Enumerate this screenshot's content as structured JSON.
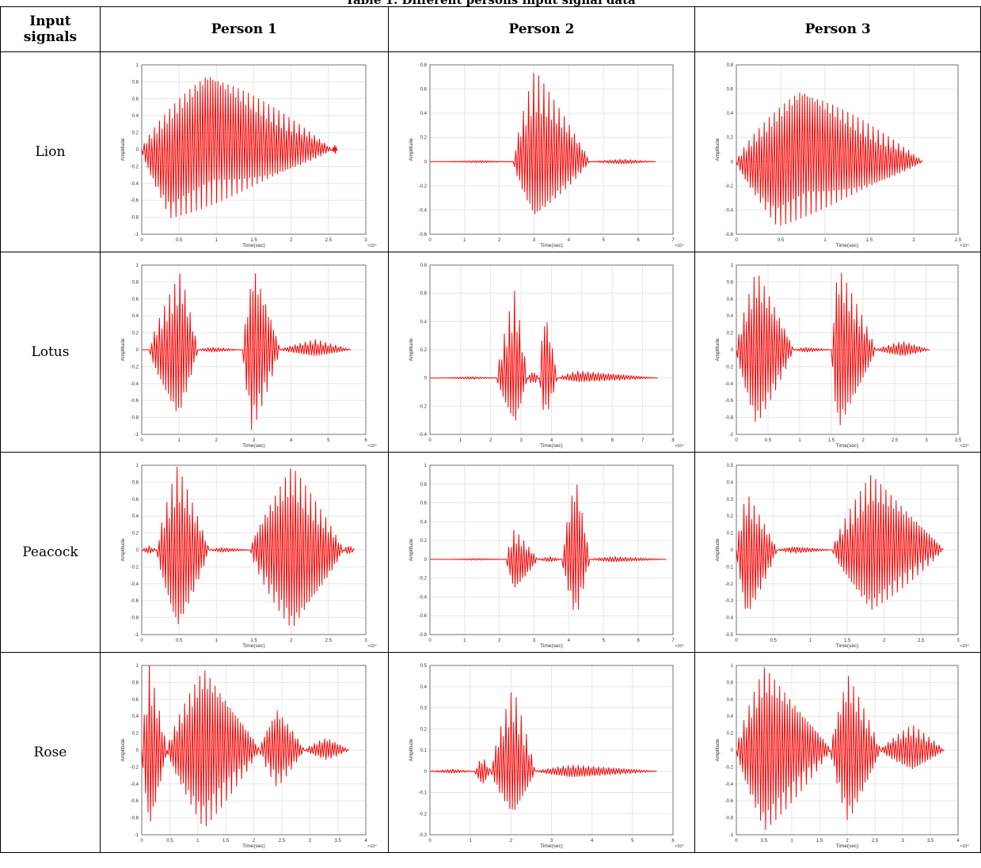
{
  "caption": "Table 1. Different persons input signal data",
  "header": {
    "input_signals_line1": "Input",
    "input_signals_line2": "signals",
    "persons": [
      "Person 1",
      "Person 2",
      "Person 3"
    ]
  },
  "colors": {
    "signal": "#ff0000",
    "grid": "#e6e6e6",
    "axis": "#555555"
  },
  "rows": [
    {
      "label": "Lion"
    },
    {
      "label": "Lotus"
    },
    {
      "label": "Peacock"
    },
    {
      "label": "Rose"
    }
  ],
  "chart_data": [
    {
      "type": "line",
      "row": "Lion",
      "person": "Person 1",
      "xlabel": "Time(sec)",
      "ylabel": "Amplitude",
      "x_exponent": "×10⁴",
      "xlim": [
        0,
        3
      ],
      "xticks": [
        0,
        0.5,
        1,
        1.5,
        2,
        2.5,
        3
      ],
      "ylim": [
        -1,
        1
      ],
      "yticks": [
        -1,
        -0.8,
        -0.6,
        -0.4,
        -0.2,
        0,
        0.2,
        0.4,
        0.6,
        0.8,
        1
      ],
      "segments": [
        [
          0,
          2.55,
          0.98,
          0.35,
          -0.85,
          0.15
        ],
        [
          2.55,
          2.62,
          0.06,
          0.5,
          -0.06,
          0.5
        ]
      ]
    },
    {
      "type": "line",
      "row": "Lion",
      "person": "Person 2",
      "xlabel": "Time(sec)",
      "ylabel": "Amplitude",
      "x_exponent": "×10⁴",
      "xlim": [
        0,
        7
      ],
      "xticks": [
        0,
        1,
        2,
        3,
        4,
        5,
        6,
        7
      ],
      "ylim": [
        -0.6,
        0.8
      ],
      "yticks": [
        -0.6,
        -0.4,
        -0.2,
        0,
        0.2,
        0.4,
        0.6,
        0.8
      ],
      "segments": [
        [
          0.5,
          2.4,
          0.01,
          0.5,
          -0.01,
          0.5
        ],
        [
          2.4,
          4.6,
          0.76,
          0.28,
          -0.5,
          0.28
        ],
        [
          4.6,
          6.5,
          0.02,
          0.5,
          -0.02,
          0.5
        ]
      ]
    },
    {
      "type": "line",
      "row": "Lion",
      "person": "Person 3",
      "xlabel": "Time(sec)",
      "ylabel": "Amplitude",
      "x_exponent": "×10⁴",
      "xlim": [
        0,
        2.5
      ],
      "xticks": [
        0,
        0.5,
        1,
        1.5,
        2,
        2.5
      ],
      "ylim": [
        -0.6,
        0.8
      ],
      "yticks": [
        -0.6,
        -0.4,
        -0.2,
        0,
        0.2,
        0.4,
        0.6,
        0.8
      ],
      "segments": [
        [
          0,
          2.1,
          0.65,
          0.35,
          -0.55,
          0.22
        ]
      ]
    },
    {
      "type": "line",
      "row": "Lotus",
      "person": "Person 1",
      "xlabel": "Time(sec)",
      "ylabel": "Amplitude",
      "x_exponent": "×10⁴",
      "xlim": [
        0,
        6
      ],
      "xticks": [
        0,
        1,
        2,
        3,
        4,
        5,
        6
      ],
      "ylim": [
        -1,
        1
      ],
      "yticks": [
        -1,
        -0.8,
        -0.6,
        -0.4,
        -0.2,
        0,
        0.2,
        0.4,
        0.6,
        0.8,
        1
      ],
      "segments": [
        [
          0.2,
          1.5,
          0.92,
          0.65,
          -0.85,
          0.6
        ],
        [
          1.5,
          2.7,
          0.03,
          0.3,
          -0.03,
          0.3
        ],
        [
          2.7,
          3.7,
          1.0,
          0.3,
          -1.0,
          0.25
        ],
        [
          3.7,
          5.6,
          0.12,
          0.5,
          -0.08,
          0.5
        ]
      ]
    },
    {
      "type": "line",
      "row": "Lotus",
      "person": "Person 2",
      "xlabel": "Time(sec)",
      "ylabel": "Amplitude",
      "x_exponent": "×10⁴",
      "xlim": [
        0,
        8
      ],
      "xticks": [
        0,
        1,
        2,
        3,
        4,
        5,
        6,
        7,
        8
      ],
      "ylim": [
        -0.4,
        0.8
      ],
      "yticks": [
        -0.4,
        -0.2,
        0,
        0.2,
        0.4,
        0.6,
        0.8
      ],
      "segments": [
        [
          0.5,
          2.2,
          0.01,
          0.5,
          -0.01,
          0.5
        ],
        [
          2.2,
          3.2,
          0.63,
          0.6,
          -0.35,
          0.6
        ],
        [
          3.2,
          3.6,
          0.05,
          0.5,
          -0.05,
          0.5
        ],
        [
          3.6,
          4.2,
          0.5,
          0.3,
          -0.3,
          0.3
        ],
        [
          4.2,
          7.5,
          0.05,
          0.2,
          -0.03,
          0.2
        ]
      ]
    },
    {
      "type": "line",
      "row": "Lotus",
      "person": "Person 3",
      "xlabel": "Time(sec)",
      "ylabel": "Amplitude",
      "x_exponent": "×10⁴",
      "xlim": [
        0,
        3.5
      ],
      "xticks": [
        0,
        0.5,
        1,
        1.5,
        2,
        2.5,
        3,
        3.5
      ],
      "ylim": [
        -1,
        1
      ],
      "yticks": [
        -1,
        -0.8,
        -0.6,
        -0.4,
        -0.2,
        0,
        0.2,
        0.4,
        0.6,
        0.8,
        1
      ],
      "segments": [
        [
          0,
          0.9,
          0.95,
          0.35,
          -0.95,
          0.35
        ],
        [
          0.9,
          1.5,
          0.03,
          0.3,
          -0.03,
          0.3
        ],
        [
          1.5,
          2.2,
          1.0,
          0.15,
          -1.0,
          0.15
        ],
        [
          2.2,
          3.05,
          0.1,
          0.5,
          -0.08,
          0.5
        ]
      ]
    },
    {
      "type": "line",
      "row": "Peacock",
      "person": "Person 1",
      "xlabel": "Time(sec)",
      "ylabel": "Amplitude",
      "x_exponent": "×10⁴",
      "xlim": [
        0,
        3
      ],
      "xticks": [
        0,
        0.5,
        1,
        1.5,
        2,
        2.5,
        3
      ],
      "ylim": [
        -1,
        1
      ],
      "yticks": [
        -1,
        -0.8,
        -0.6,
        -0.4,
        -0.2,
        0,
        0.2,
        0.4,
        0.6,
        0.8,
        1
      ],
      "segments": [
        [
          0,
          0.2,
          0.05,
          0.5,
          -0.05,
          0.5
        ],
        [
          0.2,
          0.9,
          1.0,
          0.4,
          -1.0,
          0.4
        ],
        [
          0.9,
          1.45,
          0.03,
          0.3,
          -0.03,
          0.3
        ],
        [
          1.45,
          2.7,
          1.0,
          0.45,
          -1.0,
          0.45
        ],
        [
          2.7,
          2.85,
          0.06,
          0.5,
          -0.06,
          0.5
        ]
      ]
    },
    {
      "type": "line",
      "row": "Peacock",
      "person": "Person 2",
      "xlabel": "Time(sec)",
      "ylabel": "Amplitude",
      "x_exponent": "×10⁴",
      "xlim": [
        0,
        7
      ],
      "xticks": [
        0,
        1,
        2,
        3,
        4,
        5,
        6,
        7
      ],
      "ylim": [
        -0.8,
        1
      ],
      "yticks": [
        -0.8,
        -0.6,
        -0.4,
        -0.2,
        0,
        0.2,
        0.4,
        0.6,
        0.8,
        1
      ],
      "segments": [
        [
          0.5,
          2.2,
          0.01,
          0.5,
          -0.01,
          0.5
        ],
        [
          2.2,
          3.1,
          0.32,
          0.25,
          -0.35,
          0.25
        ],
        [
          3.1,
          3.8,
          0.03,
          0.5,
          -0.03,
          0.5
        ],
        [
          3.8,
          4.6,
          0.9,
          0.5,
          -0.65,
          0.5
        ],
        [
          4.6,
          6.8,
          0.03,
          0.3,
          -0.03,
          0.3
        ]
      ]
    },
    {
      "type": "line",
      "row": "Peacock",
      "person": "Person 3",
      "xlabel": "Time(sec)",
      "ylabel": "Amplitude",
      "x_exponent": "×10⁴",
      "xlim": [
        0,
        3
      ],
      "xticks": [
        0,
        0.5,
        1,
        1.5,
        2,
        2.5,
        3
      ],
      "ylim": [
        -0.5,
        0.5
      ],
      "yticks": [
        -0.5,
        -0.4,
        -0.3,
        -0.2,
        -0.1,
        0,
        0.1,
        0.2,
        0.3,
        0.4,
        0.5
      ],
      "segments": [
        [
          0,
          0.55,
          0.34,
          0.25,
          -0.43,
          0.25
        ],
        [
          0.55,
          1.3,
          0.02,
          0.3,
          -0.02,
          0.3
        ],
        [
          1.3,
          2.8,
          0.45,
          0.35,
          -0.38,
          0.35
        ]
      ]
    },
    {
      "type": "line",
      "row": "Rose",
      "person": "Person 1",
      "xlabel": "Time(sec)",
      "ylabel": "Amplitude",
      "x_exponent": "×10⁴",
      "xlim": [
        0,
        4
      ],
      "xticks": [
        0,
        0.5,
        1,
        1.5,
        2,
        2.5,
        3,
        3.5,
        4
      ],
      "ylim": [
        -1,
        1
      ],
      "yticks": [
        -1,
        -0.8,
        -0.6,
        -0.4,
        -0.2,
        0,
        0.2,
        0.4,
        0.6,
        0.8,
        1
      ],
      "segments": [
        [
          0,
          0.45,
          1.0,
          0.3,
          -1.0,
          0.3
        ],
        [
          0.45,
          2.1,
          1.0,
          0.4,
          -0.95,
          0.4
        ],
        [
          2.1,
          2.9,
          0.5,
          0.4,
          -0.45,
          0.4
        ],
        [
          2.9,
          3.7,
          0.15,
          0.5,
          -0.12,
          0.5
        ]
      ]
    },
    {
      "type": "line",
      "row": "Rose",
      "person": "Person 2",
      "xlabel": "Time(sec)",
      "ylabel": "Amplitude",
      "x_exponent": "×10⁴",
      "xlim": [
        0,
        6
      ],
      "xticks": [
        0,
        1,
        2,
        3,
        4,
        5,
        6
      ],
      "ylim": [
        -0.3,
        0.5
      ],
      "yticks": [
        -0.3,
        -0.2,
        -0.1,
        0,
        0.1,
        0.2,
        0.3,
        0.4,
        0.5
      ],
      "segments": [
        [
          0,
          1.1,
          0.01,
          0.5,
          -0.01,
          0.5
        ],
        [
          1.1,
          1.5,
          0.07,
          0.5,
          -0.07,
          0.5
        ],
        [
          1.5,
          2.6,
          0.4,
          0.5,
          -0.22,
          0.5
        ],
        [
          2.6,
          5.6,
          0.03,
          0.3,
          -0.03,
          0.3
        ]
      ]
    },
    {
      "type": "line",
      "row": "Rose",
      "person": "Person 3",
      "xlabel": "Time(sec)",
      "ylabel": "Amplitude",
      "x_exponent": "×10⁴",
      "xlim": [
        0,
        4
      ],
      "xticks": [
        0,
        0.5,
        1,
        1.5,
        2,
        2.5,
        3,
        3.5,
        4
      ],
      "ylim": [
        -1,
        1
      ],
      "yticks": [
        -1,
        -0.8,
        -0.6,
        -0.4,
        -0.2,
        0,
        0.2,
        0.4,
        0.6,
        0.8,
        1
      ],
      "segments": [
        [
          0,
          1.7,
          1.0,
          0.3,
          -1.0,
          0.3
        ],
        [
          1.7,
          2.6,
          0.9,
          0.35,
          -0.9,
          0.35
        ],
        [
          2.6,
          3.75,
          0.3,
          0.5,
          -0.25,
          0.5
        ]
      ]
    }
  ]
}
